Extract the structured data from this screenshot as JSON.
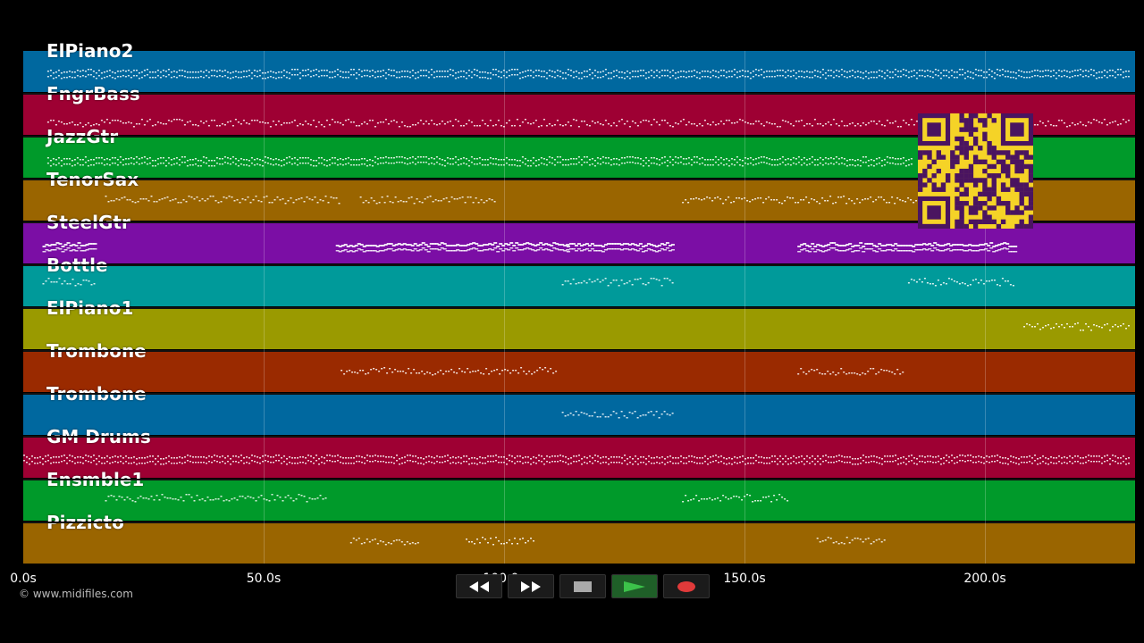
{
  "timeline": {
    "ticks": [
      {
        "label": "0.0s",
        "time": 0
      },
      {
        "label": "50.0s",
        "time": 50
      },
      {
        "label": "100.0s",
        "time": 100
      },
      {
        "label": "150.0s",
        "time": 150
      },
      {
        "label": "200.0s",
        "time": 200
      }
    ],
    "duration": 231.5
  },
  "tracks": [
    {
      "name": "ElPiano2",
      "color": "#00689f"
    },
    {
      "name": "FngrBass",
      "color": "#9e0033"
    },
    {
      "name": "JazzGtr",
      "color": "#009a2a"
    },
    {
      "name": "TenorSax",
      "color": "#9a6500"
    },
    {
      "name": "SteelGtr",
      "color": "#7b0ea5"
    },
    {
      "name": "Bottle",
      "color": "#009a9a"
    },
    {
      "name": "ElPiano1",
      "color": "#9a9a00"
    },
    {
      "name": "Trombone",
      "color": "#9a2a00"
    },
    {
      "name": "Trombone",
      "color": "#00689f"
    },
    {
      "name": "GM Drums",
      "color": "#9e0033"
    },
    {
      "name": "Ensmble1",
      "color": "#009a2a"
    },
    {
      "name": "Pizzicto",
      "color": "#9a6500"
    }
  ],
  "copyright": "© www.midifiles.com",
  "controls": {
    "rewind": "rewind-icon",
    "fast_forward": "fast-forward-icon",
    "stop": "stop-icon",
    "play": "play-icon",
    "record": "record-icon",
    "stop_color": "#aaaaaa",
    "play_color": "#3cc24a",
    "record_color": "#e03a3a"
  }
}
